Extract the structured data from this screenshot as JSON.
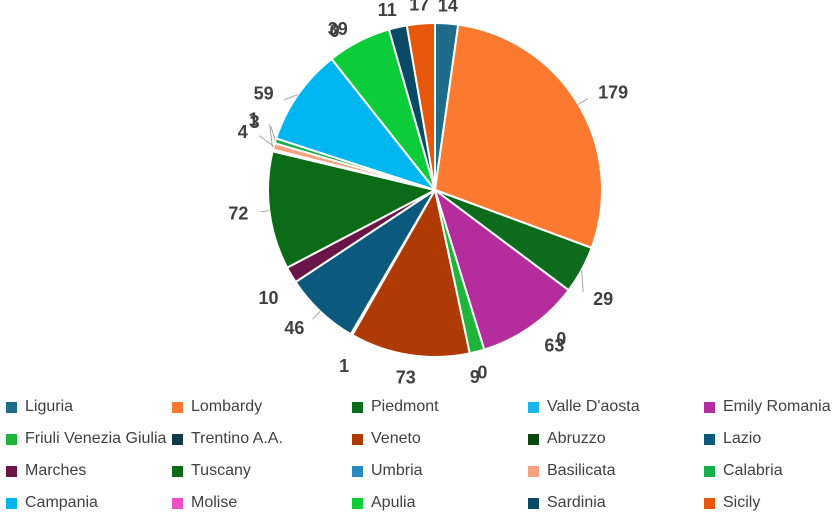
{
  "chart_data": {
    "type": "pie",
    "title": "",
    "legend_position": "bottom",
    "categories": [
      "Liguria",
      "Lombardy",
      "Piedmont",
      "Valle D'aosta",
      "Emily Romania",
      "Friuli Venezia Giulia",
      "Trentino A.A.",
      "Veneto",
      "Abruzzo",
      "Lazio",
      "Marches",
      "Tuscany",
      "Umbria",
      "Basilicata",
      "Calabria",
      "Campania",
      "Molise",
      "Apulia",
      "Sardinia",
      "Sicily"
    ],
    "values": [
      14,
      179,
      29,
      0,
      63,
      9,
      0,
      73,
      1,
      46,
      10,
      72,
      1,
      4,
      3,
      59,
      0,
      39,
      11,
      17
    ],
    "data_labels": [
      "14",
      "179",
      "29",
      "0",
      "63",
      "9",
      "0",
      "73",
      "1",
      "46",
      "10",
      "72",
      "1",
      "4",
      "3",
      "59",
      "0",
      "39",
      "11",
      "17"
    ],
    "colors": [
      "#1f6b8a",
      "#fb7a30",
      "#0e6b1b",
      "#19b6eb",
      "#b52c9c",
      "#1fb53a",
      "#0f3a4c",
      "#ae3a06",
      "#0a4a0f",
      "#0b5a7e",
      "#6a1548",
      "#0c6b17",
      "#2a8ac0",
      "#f7a27e",
      "#16b04b",
      "#00b6f0",
      "#ec4fc4",
      "#0ccc3a",
      "#0b4a66",
      "#e8580c"
    ]
  }
}
